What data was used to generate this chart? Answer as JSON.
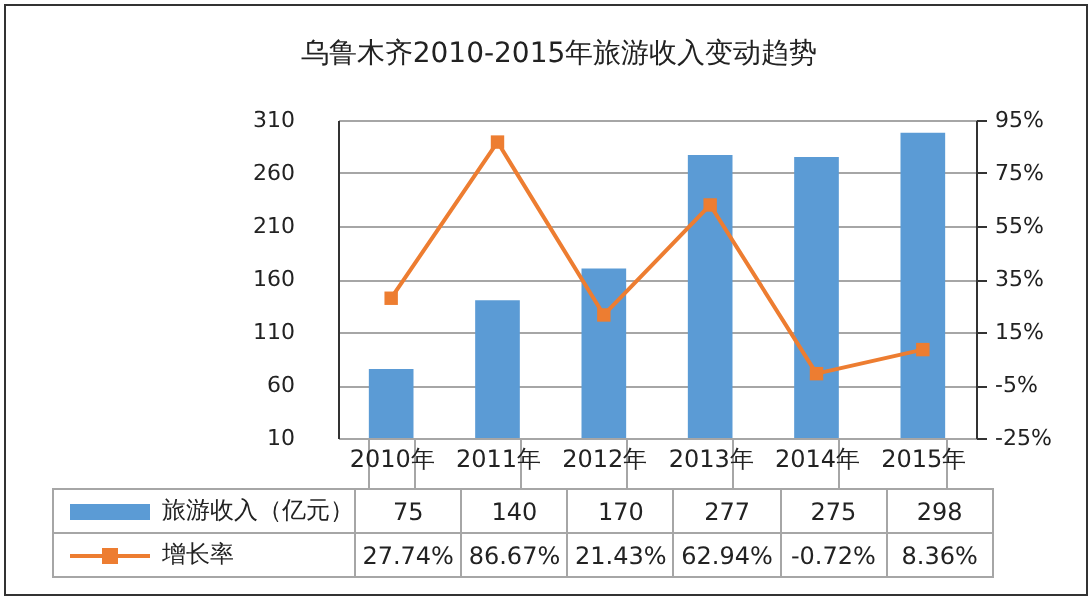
{
  "chart_data": {
    "type": "bar",
    "title": "乌鲁木齐2010-2015年旅游收入变动趋势",
    "categories": [
      "2010年",
      "2011年",
      "2012年",
      "2013年",
      "2014年",
      "2015年"
    ],
    "series": [
      {
        "name": "旅游收入（亿元）",
        "color": "#5b9bd5",
        "values": [
          75,
          140,
          170,
          277,
          275,
          298
        ],
        "value_labels": [
          "75",
          "140",
          "170",
          "277",
          "275",
          "298"
        ]
      },
      {
        "name": "增长率",
        "type": "line",
        "axis": "y2",
        "color": "#ed7d31",
        "values": [
          27.74,
          86.67,
          21.43,
          62.94,
          -0.72,
          8.36
        ],
        "value_labels": [
          "27.74%",
          "86.67%",
          "21.43%",
          "62.94%",
          "-0.72%",
          "8.36%"
        ]
      }
    ],
    "ylim": [
      10,
      310
    ],
    "yticks": [
      10,
      60,
      110,
      160,
      210,
      260,
      310
    ],
    "y2lim": [
      -25,
      95
    ],
    "y2ticks": [
      {
        "value": -25,
        "label": "-25%"
      },
      {
        "value": -5,
        "label": "-5%"
      },
      {
        "value": 15,
        "label": "15%"
      },
      {
        "value": 35,
        "label": "35%"
      },
      {
        "value": 55,
        "label": "55%"
      },
      {
        "value": 75,
        "label": "75%"
      },
      {
        "value": 95,
        "label": "95%"
      }
    ],
    "grid": "y",
    "legend": "bottom",
    "marker": "square",
    "line_style": "solid"
  }
}
